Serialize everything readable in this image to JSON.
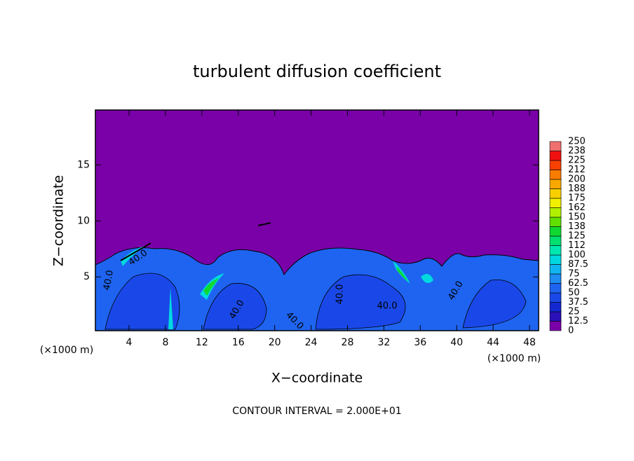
{
  "chart_data": {
    "type": "contour",
    "title": "turbulent diffusion coefficient",
    "xlabel": "X−coordinate",
    "ylabel": "Z−coordinate",
    "x_unit_label": "(×1000 m)",
    "y_unit_label": "(×1000 m)",
    "footer": "CONTOUR INTERVAL = 2.000E+01",
    "xlim": [
      0.3,
      49.0
    ],
    "xticks": [
      4,
      8,
      12,
      16,
      20,
      24,
      28,
      32,
      36,
      40,
      44,
      48
    ],
    "ylim": [
      0.2,
      19.9
    ],
    "yticks": [
      5,
      10,
      15
    ],
    "colorbar_levels": [
      0,
      12.5,
      25,
      37.5,
      50,
      62.5,
      75,
      87.5,
      100,
      112,
      125,
      138,
      150,
      162,
      175,
      188,
      200,
      212,
      225,
      238,
      250
    ],
    "colorbar_colors": [
      "#7a00a8",
      "#2a10b8",
      "#1428d0",
      "#1a48e8",
      "#1e64f0",
      "#1e8cf0",
      "#10b4f0",
      "#00d8e0",
      "#00e8b0",
      "#00e070",
      "#10d830",
      "#60e000",
      "#b0f000",
      "#f0f000",
      "#f8d000",
      "#f8a800",
      "#f87c00",
      "#f84000",
      "#f01010",
      "#f07070"
    ],
    "contour_labels": [
      "40.0",
      "40.0",
      "40.0",
      "40.0",
      "40.0",
      "40.0",
      "40.0"
    ]
  }
}
